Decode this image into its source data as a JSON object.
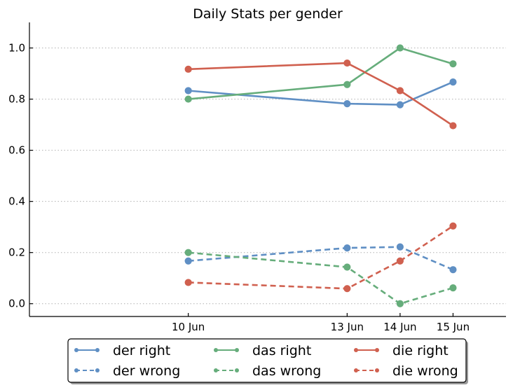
{
  "chart_data": {
    "type": "line",
    "title": "Daily Stats per gender",
    "xlabel": "",
    "ylabel": "",
    "x": [
      "10 Jun",
      "13 Jun",
      "14 Jun",
      "15 Jun"
    ],
    "x_days": [
      10,
      13,
      14,
      15
    ],
    "xlim": [
      7,
      16
    ],
    "ylim": [
      -0.05,
      1.1
    ],
    "yticks": [
      "0.0",
      "0.2",
      "0.4",
      "0.6",
      "0.8",
      "1.0"
    ],
    "ytick_values": [
      0.0,
      0.2,
      0.4,
      0.6,
      0.8,
      1.0
    ],
    "grid": "horizontal-dotted",
    "legend_position": "bottom",
    "series": [
      {
        "name": "der right",
        "color": "#5f8fc4",
        "dashed": false,
        "values": [
          0.833,
          0.782,
          0.778,
          0.867
        ]
      },
      {
        "name": "der wrong",
        "color": "#5f8fc4",
        "dashed": true,
        "values": [
          0.167,
          0.218,
          0.222,
          0.133
        ]
      },
      {
        "name": "das right",
        "color": "#66ad7b",
        "dashed": false,
        "values": [
          0.8,
          0.857,
          1.0,
          0.938
        ]
      },
      {
        "name": "das wrong",
        "color": "#66ad7b",
        "dashed": true,
        "values": [
          0.2,
          0.143,
          0.0,
          0.062
        ]
      },
      {
        "name": "die right",
        "color": "#d0604f",
        "dashed": false,
        "values": [
          0.917,
          0.941,
          0.833,
          0.696
        ]
      },
      {
        "name": "die wrong",
        "color": "#d0604f",
        "dashed": true,
        "values": [
          0.083,
          0.059,
          0.167,
          0.304
        ]
      }
    ]
  }
}
